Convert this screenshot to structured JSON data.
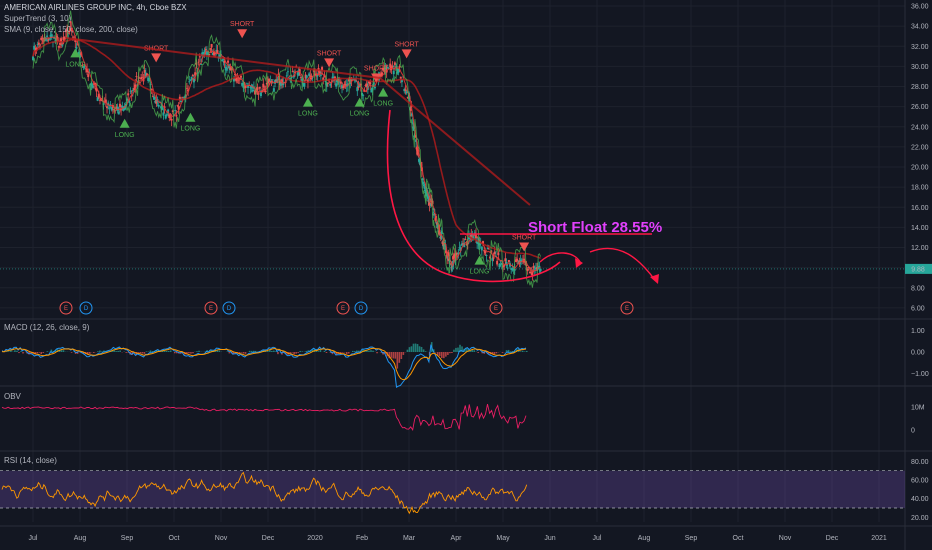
{
  "header": {
    "title": "AMERICAN AIRLINES GROUP INC, 4h, Cboe BZX",
    "supertrend": "SuperTrend (3, 10)",
    "sma": "SMA (9, close, 150, close, 200, close)"
  },
  "annotation": {
    "text": "Short Float 28.55%"
  },
  "price_label": "9.88",
  "colors": {
    "background": "#131722",
    "grid": "#1e222d",
    "candle_up": "#26a69a",
    "candle_down": "#ef5350",
    "long": "#4caf50",
    "short": "#ef5350",
    "annotation": "#e040fb",
    "macd": "#2196f3",
    "signal": "#ff9800",
    "obv": "#e91e63",
    "rsi": "#ff9800",
    "rsi_band": "#7e57c2"
  },
  "chart_data": [
    {
      "type": "line",
      "pane": "price",
      "title": "AMERICAN AIRLINES GROUP INC, 4h, Cboe BZX",
      "y_ticks": [
        6,
        8,
        10,
        12,
        14,
        16,
        18,
        20,
        22,
        24,
        26,
        28,
        30,
        32,
        34,
        36
      ],
      "y_tick_labels": [
        "6.00",
        "8.00",
        "10.00",
        "12.00",
        "14.00",
        "16.00",
        "18.00",
        "20.00",
        "22.00",
        "24.00",
        "26.00",
        "28.00",
        "30.00",
        "32.00",
        "34.00",
        "36.00"
      ],
      "ylim": [
        5,
        36.6
      ],
      "x_ticks": [
        "Jul",
        "Aug",
        "Sep",
        "Oct",
        "Nov",
        "Dec",
        "2020",
        "Feb",
        "Mar",
        "Apr",
        "May",
        "Jun",
        "Jul",
        "Aug",
        "Sep",
        "Oct",
        "Nov",
        "Dec",
        "2021"
      ],
      "series": [
        {
          "values_x": [
            0,
            0.2,
            0.4,
            0.6,
            0.8,
            1.0,
            1.2,
            1.4,
            1.6,
            1.8,
            2.0,
            2.2,
            2.4,
            2.6,
            2.8,
            3.0,
            3.2,
            3.4,
            3.6,
            3.8,
            4.0,
            4.2,
            4.4,
            4.6,
            4.8,
            5.0,
            5.2,
            5.4,
            5.6,
            5.8,
            6.0,
            6.2,
            6.4,
            6.6,
            6.8,
            7.0,
            7.2,
            7.4,
            7.6,
            7.8,
            8.0,
            8.1,
            8.2,
            8.3,
            8.4,
            8.5,
            8.6,
            8.7,
            8.8,
            8.9,
            9.0,
            9.2,
            9.4,
            9.6,
            9.8,
            10.0,
            10.2,
            10.4,
            10.6,
            10.8
          ],
          "values": [
            31.5,
            32.5,
            33.0,
            32.0,
            34.0,
            31.0,
            29.0,
            27.0,
            26.0,
            25.5,
            26.5,
            28.5,
            29.0,
            27.0,
            25.5,
            25.0,
            27.0,
            29.0,
            31.0,
            31.5,
            31.0,
            29.5,
            28.5,
            28.0,
            27.5,
            28.0,
            28.5,
            29.0,
            29.5,
            28.5,
            29.5,
            29.0,
            28.5,
            28.0,
            28.5,
            27.5,
            28.0,
            29.0,
            30.0,
            29.5,
            27.0,
            24.0,
            21.0,
            19.0,
            17.0,
            16.0,
            14.0,
            13.0,
            11.5,
            10.5,
            11.0,
            12.5,
            13.5,
            12.0,
            11.0,
            10.5,
            10.0,
            10.5,
            9.5,
            9.9
          ]
        }
      ],
      "signals": [
        {
          "label": "LONG",
          "x": 0.9,
          "price": 31.4
        },
        {
          "label": "SHORT",
          "x": 2.62,
          "price": 30.8
        },
        {
          "label": "LONG",
          "x": 1.95,
          "price": 24.4
        },
        {
          "label": "LONG",
          "x": 3.35,
          "price": 25.0
        },
        {
          "label": "SHORT",
          "x": 4.45,
          "price": 33.2
        },
        {
          "label": "SHORT",
          "x": 6.3,
          "price": 30.3
        },
        {
          "label": "LONG",
          "x": 5.85,
          "price": 26.5
        },
        {
          "label": "SHORT",
          "x": 7.3,
          "price": 28.8
        },
        {
          "label": "LONG",
          "x": 6.95,
          "price": 26.5
        },
        {
          "label": "LONG",
          "x": 7.45,
          "price": 27.5
        },
        {
          "label": "SHORT",
          "x": 7.95,
          "price": 31.2
        },
        {
          "label": "LONG",
          "x": 9.5,
          "price": 10.8
        },
        {
          "label": "SHORT",
          "x": 10.45,
          "price": 12.0
        }
      ]
    },
    {
      "type": "line",
      "pane": "macd",
      "title": "MACD (12, 26, close, 9)",
      "y_ticks": [
        1.0,
        0.0,
        -1.0
      ],
      "y_tick_labels": [
        "1.00",
        "0.00",
        "−1.00"
      ],
      "ylim": [
        -1.5,
        1.5
      ]
    },
    {
      "type": "line",
      "pane": "obv",
      "title": "OBV",
      "y_ticks": [
        "10M",
        "0"
      ]
    },
    {
      "type": "line",
      "pane": "rsi",
      "title": "RSI (14, close)",
      "y_ticks": [
        80,
        60,
        40,
        20
      ],
      "y_tick_labels": [
        "80.00",
        "60.00",
        "40.00",
        "20.00"
      ],
      "ylim": [
        15,
        90
      ],
      "band": [
        30,
        70
      ]
    }
  ],
  "events": [
    {
      "type": "E",
      "x": 66
    },
    {
      "type": "D",
      "x": 86
    },
    {
      "type": "E",
      "x": 211
    },
    {
      "type": "D",
      "x": 229
    },
    {
      "type": "E",
      "x": 343
    },
    {
      "type": "D",
      "x": 361
    },
    {
      "type": "E",
      "x": 496
    },
    {
      "type": "E",
      "x": 627
    }
  ],
  "indicators": {
    "macd_title": "MACD (12, 26, close, 9)",
    "obv_title": "OBV",
    "rsi_title": "RSI (14, close)"
  }
}
